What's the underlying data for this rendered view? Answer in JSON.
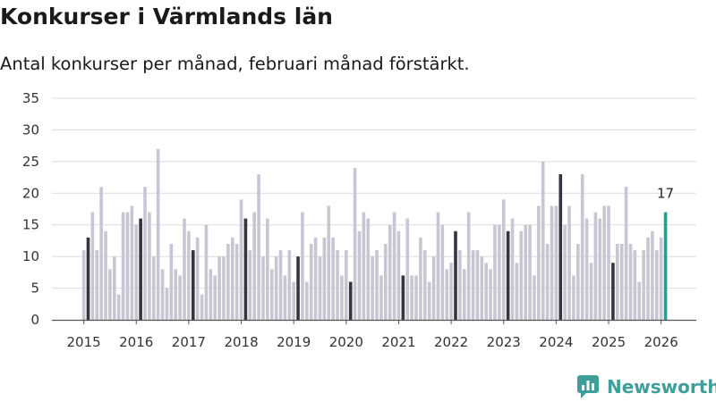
{
  "title": "Konkurser i Värmlands län",
  "subtitle": "Antal konkurser per månad, februari månad förstärkt.",
  "brand": {
    "name": "Newsworthy",
    "color": "#3e9e9a",
    "icon": "newsworthy-logo-icon"
  },
  "chart_data": {
    "type": "bar",
    "title": "Konkurser i Värmlands län",
    "subtitle": "Antal konkurser per månad, februari månad förstärkt.",
    "xlabel": "",
    "ylabel": "",
    "ylim": [
      0,
      35
    ],
    "yticks": [
      0,
      5,
      10,
      15,
      20,
      25,
      30,
      35
    ],
    "xticks": [
      "2015",
      "2016",
      "2017",
      "2018",
      "2019",
      "2020",
      "2021",
      "2022",
      "2023",
      "2024",
      "2025",
      "2026"
    ],
    "grid": true,
    "legend": "none",
    "start": "2015-01",
    "highlight_month": "February",
    "colors": {
      "default": "#c7c6d3",
      "february": "#36343f",
      "latest": "#2a9d93"
    },
    "latest_label": "17",
    "values": [
      11,
      13,
      17,
      11,
      21,
      14,
      8,
      10,
      4,
      17,
      17,
      18,
      15,
      16,
      21,
      17,
      10,
      27,
      8,
      5,
      12,
      8,
      7,
      16,
      14,
      11,
      13,
      4,
      15,
      8,
      7,
      10,
      10,
      12,
      13,
      12,
      19,
      16,
      11,
      17,
      23,
      10,
      16,
      8,
      10,
      11,
      7,
      11,
      6,
      10,
      17,
      6,
      12,
      13,
      10,
      13,
      18,
      13,
      11,
      7,
      11,
      6,
      24,
      14,
      17,
      16,
      10,
      11,
      7,
      12,
      15,
      17,
      14,
      7,
      16,
      7,
      7,
      13,
      11,
      6,
      10,
      17,
      15,
      8,
      9,
      14,
      11,
      8,
      17,
      11,
      11,
      10,
      9,
      8,
      15,
      15,
      19,
      14,
      16,
      9,
      14,
      15,
      15,
      7,
      18,
      25,
      12,
      18,
      18,
      23,
      15,
      18,
      7,
      12,
      23,
      16,
      9,
      17,
      16,
      18,
      18,
      9,
      12,
      12,
      21,
      12,
      11,
      6,
      11,
      13,
      14,
      11,
      13,
      17
    ]
  }
}
